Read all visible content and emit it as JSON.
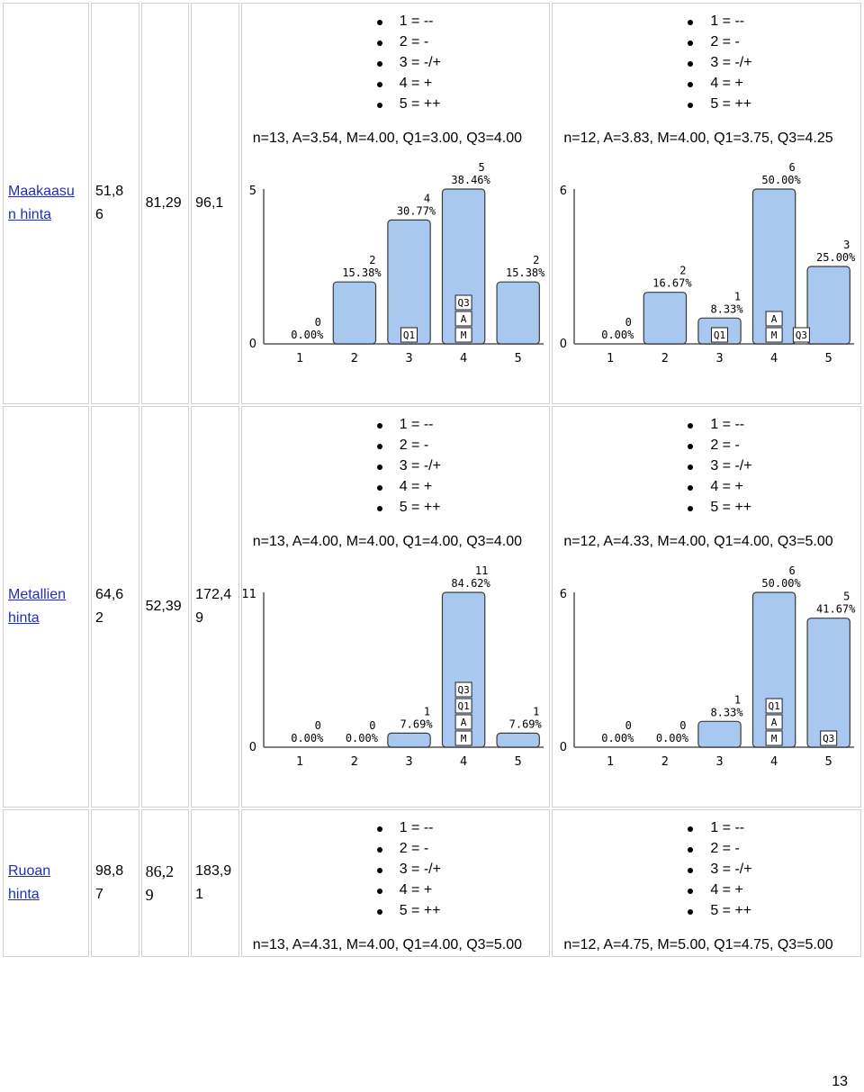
{
  "legend": [
    "1 = --",
    "2 = -",
    "3 = -/+",
    "4 = +",
    "5 = ++"
  ],
  "rows": [
    {
      "name_line1": "Maakaasu",
      "name_line2": "n hinta",
      "v1_line1": "51,8",
      "v1_line2": "6",
      "v2_line1": "81,29",
      "v2_line2": "",
      "v3_line1": "96,1",
      "v3_line2": "",
      "left": {
        "stats": "n=13, A=3.54, M=4.00, Q1=3.00, Q3=4.00"
      },
      "right": {
        "stats": "n=12, A=3.83, M=4.00, Q1=3.75, Q3=4.25"
      }
    },
    {
      "name_line1": "Metallien",
      "name_line2": "hinta",
      "v1_line1": "64,6",
      "v1_line2": "2",
      "v2_line1": "52,39",
      "v2_line2": "",
      "v3_line1": "172,4",
      "v3_line2": "9",
      "left": {
        "stats": "n=13, A=4.00, M=4.00, Q1=4.00, Q3=4.00"
      },
      "right": {
        "stats": "n=12, A=4.33, M=4.00, Q1=4.00, Q3=5.00"
      }
    },
    {
      "name_line1": "Ruoan",
      "name_line2": "hinta",
      "v1_line1": "98,8",
      "v1_line2": "7",
      "v2_line1": "86,2",
      "v2_line2": "9",
      "v3_line1": "183,9",
      "v3_line2": "1",
      "left": {
        "stats": "n=13, A=4.31, M=4.00, Q1=4.00, Q3=5.00"
      },
      "right": {
        "stats": "n=12, A=4.75, M=5.00, Q1=4.75, Q3=5.00"
      }
    }
  ],
  "chart_data": [
    {
      "type": "bar",
      "id": "maakaasu-n13",
      "categories": [
        "1",
        "2",
        "3",
        "4",
        "5"
      ],
      "counts": [
        0,
        2,
        4,
        5,
        2
      ],
      "percents": [
        "0.00%",
        "15.38%",
        "30.77%",
        "38.46%",
        "15.38%"
      ],
      "ymax": 5,
      "markers": [
        {
          "cat": 3,
          "labels": [
            "Q1"
          ]
        },
        {
          "cat": 4,
          "labels": [
            "Q3",
            "A",
            "M"
          ]
        }
      ]
    },
    {
      "type": "bar",
      "id": "maakaasu-n12",
      "categories": [
        "1",
        "2",
        "3",
        "4",
        "5"
      ],
      "counts": [
        0,
        2,
        1,
        6,
        3
      ],
      "percents": [
        "0.00%",
        "16.67%",
        "8.33%",
        "50.00%",
        "25.00%"
      ],
      "ymax": 6,
      "markers": [
        {
          "cat": 3,
          "labels": [
            "Q1"
          ]
        },
        {
          "cat": 4,
          "labels": [
            "A",
            "M"
          ]
        },
        {
          "cat": 4.5,
          "labels": [
            "Q3"
          ]
        }
      ]
    },
    {
      "type": "bar",
      "id": "metallien-n13",
      "categories": [
        "1",
        "2",
        "3",
        "4",
        "5"
      ],
      "counts": [
        0,
        0,
        1,
        11,
        1
      ],
      "percents": [
        "0.00%",
        "0.00%",
        "7.69%",
        "84.62%",
        "7.69%"
      ],
      "ymax": 11,
      "markers": [
        {
          "cat": 4,
          "labels": [
            "Q3",
            "Q1",
            "A",
            "M"
          ]
        }
      ]
    },
    {
      "type": "bar",
      "id": "metallien-n12",
      "categories": [
        "1",
        "2",
        "3",
        "4",
        "5"
      ],
      "counts": [
        0,
        0,
        1,
        6,
        5
      ],
      "percents": [
        "0.00%",
        "0.00%",
        "8.33%",
        "50.00%",
        "41.67%"
      ],
      "ymax": 6,
      "markers": [
        {
          "cat": 4,
          "labels": [
            "Q1",
            "A",
            "M"
          ]
        },
        {
          "cat": 5,
          "labels": [
            "Q3"
          ]
        }
      ]
    }
  ],
  "page_number": "13"
}
